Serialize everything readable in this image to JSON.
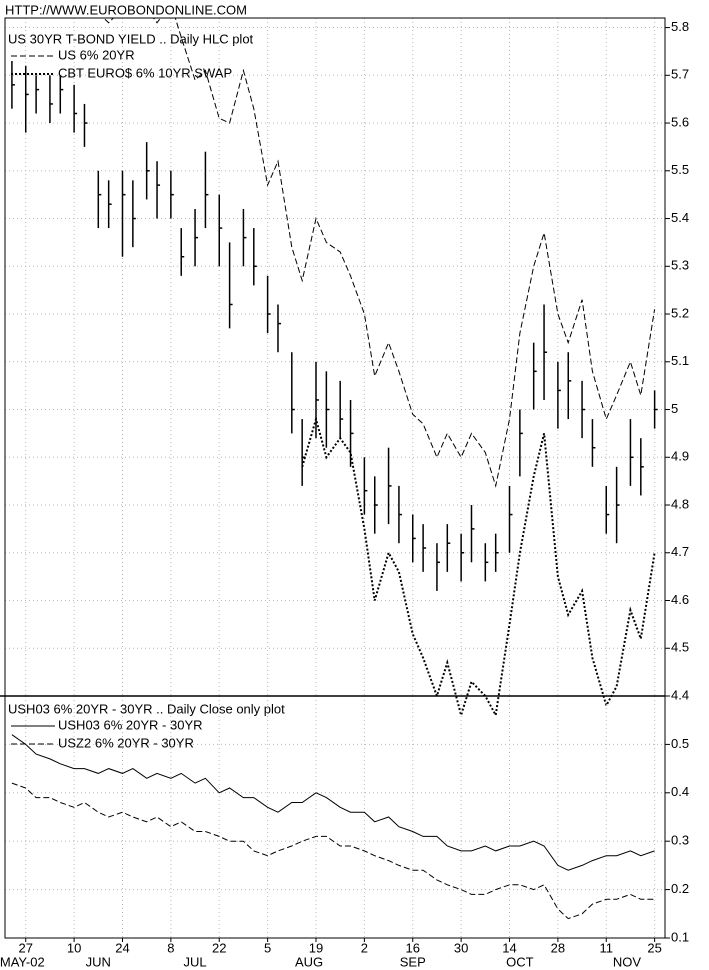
{
  "header": "HTTP://WWW.EUROBONDONLINE.COM",
  "chart_data": [
    {
      "type": "hlc",
      "title": "US 30YR T-BOND YIELD .. Daily HLC plot",
      "x": [
        "2002-05-23",
        "2002-05-27",
        "2002-05-30",
        "2002-06-03",
        "2002-06-06",
        "2002-06-10",
        "2002-06-13",
        "2002-06-17",
        "2002-06-20",
        "2002-06-24",
        "2002-06-27",
        "2002-07-01",
        "2002-07-04",
        "2002-07-08",
        "2002-07-11",
        "2002-07-15",
        "2002-07-18",
        "2002-07-22",
        "2002-07-25",
        "2002-07-29",
        "2002-08-01",
        "2002-08-05",
        "2002-08-08",
        "2002-08-12",
        "2002-08-15",
        "2002-08-19",
        "2002-08-22",
        "2002-08-26",
        "2002-08-29",
        "2002-09-02",
        "2002-09-05",
        "2002-09-09",
        "2002-09-12",
        "2002-09-16",
        "2002-09-19",
        "2002-09-23",
        "2002-09-26",
        "2002-09-30",
        "2002-10-03",
        "2002-10-07",
        "2002-10-10",
        "2002-10-14",
        "2002-10-17",
        "2002-10-21",
        "2002-10-24",
        "2002-10-28",
        "2002-10-31",
        "2002-11-04",
        "2002-11-07",
        "2002-11-11",
        "2002-11-14",
        "2002-11-18",
        "2002-11-21",
        "2002-11-25"
      ],
      "high": [
        5.73,
        5.72,
        5.7,
        5.7,
        5.7,
        5.68,
        5.64,
        5.5,
        5.48,
        5.5,
        5.48,
        5.56,
        5.52,
        5.5,
        5.38,
        5.42,
        5.54,
        5.45,
        5.35,
        5.42,
        5.38,
        5.28,
        5.22,
        5.12,
        4.98,
        5.1,
        5.08,
        5.06,
        5.02,
        4.9,
        4.86,
        4.92,
        4.84,
        4.78,
        4.76,
        4.72,
        4.76,
        4.74,
        4.8,
        4.72,
        4.74,
        4.84,
        5.0,
        5.14,
        5.22,
        5.1,
        5.12,
        5.06,
        4.98,
        4.84,
        4.88,
        4.98,
        4.94,
        5.04
      ],
      "low": [
        5.63,
        5.58,
        5.62,
        5.6,
        5.62,
        5.58,
        5.55,
        5.38,
        5.38,
        5.32,
        5.34,
        5.44,
        5.4,
        5.4,
        5.28,
        5.3,
        5.38,
        5.3,
        5.17,
        5.3,
        5.26,
        5.16,
        5.12,
        4.95,
        4.84,
        4.94,
        4.92,
        4.94,
        4.88,
        4.78,
        4.74,
        4.76,
        4.72,
        4.68,
        4.66,
        4.62,
        4.66,
        4.64,
        4.68,
        4.64,
        4.66,
        4.7,
        4.86,
        5.0,
        5.02,
        4.96,
        4.98,
        4.94,
        4.88,
        4.74,
        4.72,
        4.84,
        4.82,
        4.96
      ],
      "close": [
        5.68,
        5.66,
        5.67,
        5.64,
        5.67,
        5.62,
        5.6,
        5.45,
        5.43,
        5.45,
        5.4,
        5.5,
        5.47,
        5.45,
        5.32,
        5.36,
        5.45,
        5.38,
        5.22,
        5.36,
        5.3,
        5.2,
        5.18,
        5.0,
        4.9,
        5.02,
        5.0,
        4.98,
        4.95,
        4.83,
        4.8,
        4.84,
        4.78,
        4.73,
        4.71,
        4.68,
        4.72,
        4.7,
        4.75,
        4.68,
        4.7,
        4.78,
        4.95,
        5.08,
        5.12,
        5.04,
        5.06,
        5.0,
        4.92,
        4.78,
        4.8,
        4.9,
        4.88,
        5.0
      ],
      "color": "#000000",
      "series": [
        {
          "name": "US 6% 20YR",
          "color": "#000000",
          "dash": "dashed",
          "values": [
            null,
            null,
            null,
            null,
            null,
            null,
            null,
            5.83,
            5.81,
            5.84,
            5.82,
            5.84,
            5.81,
            5.85,
            5.78,
            5.69,
            5.71,
            5.61,
            5.6,
            5.71,
            5.63,
            5.47,
            5.52,
            5.34,
            5.27,
            5.4,
            5.35,
            5.33,
            5.28,
            5.2,
            5.07,
            5.14,
            5.08,
            4.99,
            4.97,
            4.9,
            4.95,
            4.9,
            4.95,
            4.91,
            4.84,
            4.98,
            5.16,
            5.3,
            5.37,
            5.2,
            5.14,
            5.23,
            5.08,
            4.98,
            5.03,
            5.1,
            5.03,
            5.21
          ]
        },
        {
          "name": "CBT EURO$ 6% 10YR SWAP",
          "color": "#000000",
          "dash": "dotted",
          "values": [
            null,
            null,
            null,
            null,
            null,
            null,
            null,
            null,
            null,
            null,
            null,
            null,
            null,
            null,
            null,
            null,
            null,
            null,
            null,
            null,
            null,
            null,
            null,
            null,
            4.88,
            4.98,
            4.9,
            4.94,
            4.91,
            4.75,
            4.6,
            4.7,
            4.66,
            4.53,
            4.48,
            4.4,
            4.47,
            4.36,
            4.43,
            4.4,
            4.36,
            4.55,
            4.7,
            4.86,
            4.95,
            4.65,
            4.57,
            4.62,
            4.48,
            4.38,
            4.42,
            4.58,
            4.52,
            4.7
          ]
        }
      ],
      "xlim": [
        "2002-05-21",
        "2002-11-28"
      ],
      "ylim": [
        4.4,
        5.82
      ],
      "yticks": [
        4.4,
        4.5,
        4.6,
        4.7,
        4.8,
        4.9,
        5.0,
        5.1,
        5.2,
        5.3,
        5.4,
        5.5,
        5.6,
        5.7,
        5.8
      ],
      "grid": true,
      "legend": "upper left"
    },
    {
      "type": "line",
      "title": "USH03 6% 20YR - 30YR .. Daily Close only plot",
      "x": [
        "2002-05-23",
        "2002-05-27",
        "2002-05-30",
        "2002-06-03",
        "2002-06-06",
        "2002-06-10",
        "2002-06-13",
        "2002-06-17",
        "2002-06-20",
        "2002-06-24",
        "2002-06-27",
        "2002-07-01",
        "2002-07-04",
        "2002-07-08",
        "2002-07-11",
        "2002-07-15",
        "2002-07-18",
        "2002-07-22",
        "2002-07-25",
        "2002-07-29",
        "2002-08-01",
        "2002-08-05",
        "2002-08-08",
        "2002-08-12",
        "2002-08-15",
        "2002-08-19",
        "2002-08-22",
        "2002-08-26",
        "2002-08-29",
        "2002-09-02",
        "2002-09-05",
        "2002-09-09",
        "2002-09-12",
        "2002-09-16",
        "2002-09-19",
        "2002-09-23",
        "2002-09-26",
        "2002-09-30",
        "2002-10-03",
        "2002-10-07",
        "2002-10-10",
        "2002-10-14",
        "2002-10-17",
        "2002-10-21",
        "2002-10-24",
        "2002-10-28",
        "2002-10-31",
        "2002-11-04",
        "2002-11-07",
        "2002-11-11",
        "2002-11-14",
        "2002-11-18",
        "2002-11-21",
        "2002-11-25"
      ],
      "series": [
        {
          "name": "USH03 6% 20YR - 30YR",
          "color": "#000000",
          "dash": "solid",
          "values": [
            0.52,
            0.5,
            0.48,
            0.47,
            0.46,
            0.45,
            0.45,
            0.44,
            0.45,
            0.44,
            0.45,
            0.43,
            0.44,
            0.43,
            0.44,
            0.42,
            0.43,
            0.4,
            0.41,
            0.39,
            0.39,
            0.37,
            0.36,
            0.38,
            0.38,
            0.4,
            0.39,
            0.37,
            0.36,
            0.36,
            0.34,
            0.35,
            0.33,
            0.32,
            0.31,
            0.31,
            0.29,
            0.28,
            0.28,
            0.29,
            0.28,
            0.29,
            0.29,
            0.3,
            0.29,
            0.25,
            0.24,
            0.25,
            0.26,
            0.27,
            0.27,
            0.28,
            0.27,
            0.28
          ]
        },
        {
          "name": "USZ2 6% 20YR - 30YR",
          "color": "#000000",
          "dash": "dashed",
          "values": [
            0.42,
            0.41,
            0.39,
            0.39,
            0.38,
            0.37,
            0.38,
            0.36,
            0.35,
            0.36,
            0.35,
            0.34,
            0.35,
            0.33,
            0.34,
            0.32,
            0.32,
            0.31,
            0.3,
            0.3,
            0.28,
            0.27,
            0.28,
            0.29,
            0.3,
            0.31,
            0.31,
            0.29,
            0.29,
            0.28,
            0.27,
            0.26,
            0.25,
            0.24,
            0.24,
            0.22,
            0.21,
            0.2,
            0.19,
            0.19,
            0.2,
            0.21,
            0.21,
            0.2,
            0.21,
            0.16,
            0.14,
            0.15,
            0.17,
            0.18,
            0.18,
            0.19,
            0.18,
            0.18
          ]
        }
      ],
      "xlim": [
        "2002-05-21",
        "2002-11-28"
      ],
      "xticks": [
        {
          "value": "2002-05-27",
          "label": "27"
        },
        {
          "value": "2002-06-10",
          "label": "10"
        },
        {
          "value": "2002-06-24",
          "label": "24"
        },
        {
          "value": "2002-07-08",
          "label": "8"
        },
        {
          "value": "2002-07-22",
          "label": "22"
        },
        {
          "value": "2002-08-05",
          "label": "5"
        },
        {
          "value": "2002-08-19",
          "label": "19"
        },
        {
          "value": "2002-09-02",
          "label": "2"
        },
        {
          "value": "2002-09-16",
          "label": "16"
        },
        {
          "value": "2002-09-30",
          "label": "30"
        },
        {
          "value": "2002-10-14",
          "label": "14"
        },
        {
          "value": "2002-10-28",
          "label": "28"
        },
        {
          "value": "2002-11-11",
          "label": "11"
        },
        {
          "value": "2002-11-25",
          "label": "25"
        }
      ],
      "month_labels": [
        {
          "value": "2002-05-26",
          "label": "MAY-02"
        },
        {
          "value": "2002-06-17",
          "label": "JUN"
        },
        {
          "value": "2002-07-15",
          "label": "JUL"
        },
        {
          "value": "2002-08-17",
          "label": "AUG"
        },
        {
          "value": "2002-09-16",
          "label": "SEP"
        },
        {
          "value": "2002-10-17",
          "label": "OCT"
        },
        {
          "value": "2002-11-17",
          "label": "NOV"
        }
      ],
      "ylim": [
        0.1,
        0.6
      ],
      "yticks": [
        0.1,
        0.2,
        0.3,
        0.4,
        0.5
      ],
      "grid": true,
      "legend": "upper left"
    }
  ]
}
